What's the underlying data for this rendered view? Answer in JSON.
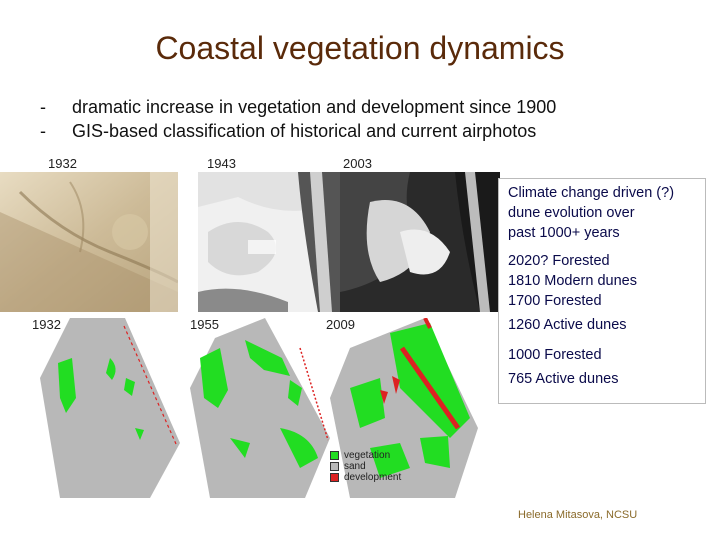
{
  "title": "Coastal vegetation dynamics",
  "bullets": [
    {
      "marker": "-",
      "text": "dramatic increase in vegetation and development since 1900"
    },
    {
      "marker": "-",
      "text": "GIS-based classification of historical and current airphotos"
    }
  ],
  "photo_labels": {
    "photo_1932": "1932",
    "photo_1943": "1943",
    "photo_2003": "2003"
  },
  "map_labels": {
    "map_1932": "1932",
    "map_1955": "1955",
    "map_2009": "2009"
  },
  "info_box": {
    "intro_lines": [
      "Climate change driven (?)",
      "dune evolution over",
      "past 1000+ years"
    ],
    "timeline": [
      "2020? Forested",
      "1810 Modern dunes",
      "1700 Forested",
      "1260 Active dunes",
      "1000 Forested",
      "765 Active dunes"
    ]
  },
  "legend": {
    "items": [
      {
        "label": "vegetation",
        "color": "#22dd22"
      },
      {
        "label": "sand",
        "color": "#b8b8b8"
      },
      {
        "label": "development",
        "color": "#dd2222"
      }
    ]
  },
  "credit": "Helena Mitasova, NCSU",
  "colors": {
    "title": "#5a2a0a",
    "vegetation": "#22dd22",
    "sand": "#b8b8b8",
    "development": "#dd2222"
  }
}
